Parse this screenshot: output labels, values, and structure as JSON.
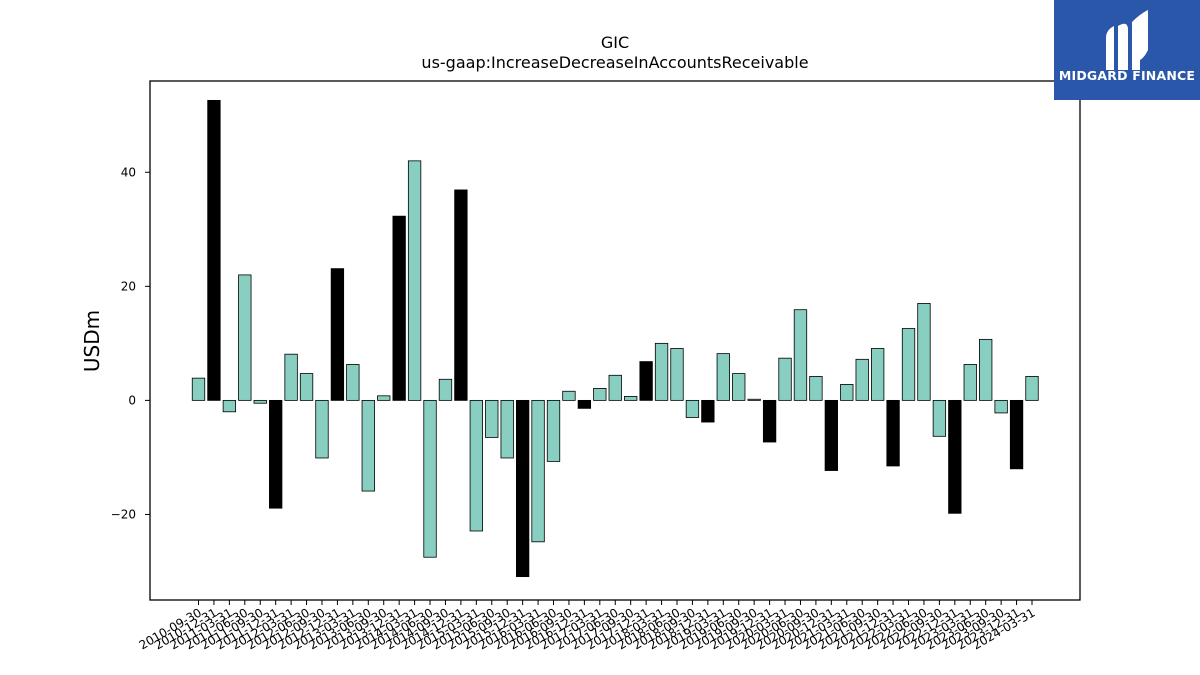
{
  "chart_data": {
    "type": "bar",
    "title": "GIC",
    "subtitle": "us-gaap:IncreaseDecreaseInAccountsReceivable",
    "ylabel": "USDm",
    "xlabel": "",
    "ylim": [
      -35,
      56
    ],
    "yticks": [
      -20,
      0,
      20,
      40
    ],
    "grid": false,
    "colors": {
      "default": "#88cfc1",
      "highlight": "#000000",
      "edge": "#000000"
    },
    "categories": [
      "2010-09-30",
      "2010-12-31",
      "2011-03-31",
      "2011-06-30",
      "2011-09-30",
      "2011-12-31",
      "2012-03-31",
      "2012-06-30",
      "2012-09-30",
      "2012-12-31",
      "2013-03-31",
      "2013-06-30",
      "2013-09-30",
      "2013-12-31",
      "2014-03-31",
      "2014-06-30",
      "2014-09-30",
      "2014-12-31",
      "2015-03-31",
      "2015-06-30",
      "2015-09-30",
      "2015-12-31",
      "2016-03-31",
      "2016-06-30",
      "2016-09-30",
      "2016-12-31",
      "2017-03-31",
      "2017-06-30",
      "2017-09-30",
      "2017-12-31",
      "2018-03-31",
      "2018-06-30",
      "2018-09-30",
      "2018-12-31",
      "2019-03-31",
      "2019-06-30",
      "2019-09-30",
      "2019-12-31",
      "2020-03-31",
      "2020-06-30",
      "2020-09-30",
      "2020-12-31",
      "2021-03-31",
      "2021-06-30",
      "2021-09-30",
      "2021-12-31",
      "2022-03-31",
      "2022-06-30",
      "2022-09-30",
      "2022-12-31",
      "2023-03-31",
      "2023-06-30",
      "2023-09-30",
      "2023-12-31",
      "2024-03-31"
    ],
    "x_tick_labels": [
      "2010-09-30",
      "2010-12-31",
      "2011-03-31",
      "2011-06-30",
      "2011-09-30",
      "2011-12-31",
      "2012-03-31",
      "2012-06-30",
      "2012-09-30",
      "2012-12-31",
      "2013-03-31",
      "2013-06-30",
      "2013-09-30",
      "2013-12-31",
      "2014-03-31",
      "2014-06-30",
      "2014-09-30",
      "2014-12-31",
      "2015-03-31",
      "2015-06-30",
      "2015-09-30",
      "2015-12-31",
      "2016-03-31",
      "2016-06-30",
      "2016-09-30",
      "2016-12-31",
      "2017-03-31",
      "2017-06-30",
      "2017-09-30",
      "2017-12-31",
      "2018-03-31",
      "2018-06-30",
      "2018-09-30",
      "2018-12-31",
      "2019-03-31",
      "2019-06-30",
      "2019-09-30",
      "2019-12-31",
      "2020-03-31",
      "2020-06-30",
      "2020-09-30",
      "2020-12-31",
      "2021-03-31",
      "2021-06-30",
      "2021-09-30",
      "2021-12-31",
      "2022-03-31",
      "2022-06-30",
      "2022-09-30",
      "2022-12-31",
      "2023-03-31",
      "2023-06-30",
      "2023-09-30",
      "2023-12-31",
      "2024-03-31"
    ],
    "values": [
      3.9,
      52.6,
      -2.0,
      22.0,
      -0.5,
      -18.9,
      8.1,
      4.7,
      -10.1,
      23.1,
      6.3,
      -15.9,
      0.8,
      32.3,
      42.0,
      -27.5,
      3.7,
      36.9,
      -22.9,
      -6.5,
      -10.1,
      -30.9,
      -24.8,
      -10.7,
      1.6,
      -1.4,
      2.1,
      4.4,
      0.7,
      6.8,
      10.0,
      9.1,
      -3.0,
      -3.8,
      8.2,
      4.7,
      0.2,
      -7.3,
      7.4,
      15.9,
      4.2,
      -12.3,
      2.8,
      7.2,
      9.1,
      -11.5,
      12.6,
      17.0,
      -6.3,
      -19.8,
      6.3,
      10.7,
      -2.2,
      -12.0,
      4.2
    ],
    "highlight": [
      false,
      true,
      false,
      false,
      false,
      true,
      false,
      false,
      false,
      true,
      false,
      false,
      false,
      true,
      false,
      false,
      false,
      true,
      false,
      false,
      false,
      true,
      false,
      false,
      false,
      true,
      false,
      false,
      false,
      true,
      false,
      false,
      false,
      true,
      false,
      false,
      false,
      true,
      false,
      false,
      false,
      true,
      false,
      false,
      false,
      true,
      false,
      false,
      false,
      true,
      false,
      false,
      false,
      true,
      false
    ]
  },
  "logo": {
    "text": "MIDGARD FINANCE",
    "background": "#2b57aa",
    "icon": "midgard-logo-icon"
  }
}
